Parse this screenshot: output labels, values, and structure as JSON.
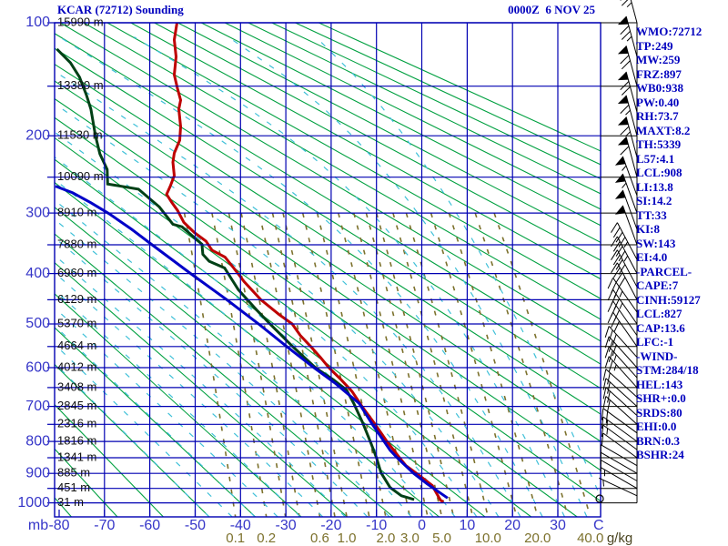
{
  "title": "KCAR (72712) Sounding",
  "datetime": "0000Z  6 NOV 25",
  "indices": [
    "WMO:72712",
    "TP:249",
    "MW:259",
    "FRZ:897",
    "WB0:938",
    "PW:0.40",
    "RH:73.7",
    "MAXT:8.2",
    "TH:5339",
    "L57:4.1",
    "LCL:908",
    "LI:13.8",
    "SI:14.2",
    "TT:33",
    "KI:8",
    "SW:143",
    "EI:4.0",
    "-PARCEL-",
    "CAPE:7",
    "CINH:59127",
    "LCL:827",
    "CAP:13.6",
    "LFC:-1",
    "-WIND-",
    "STM:284/18",
    "HEL:143",
    "SHR+:0.0",
    "SRDS:80",
    "EHI:0.0",
    "BRN:0.3",
    "BSHR:24"
  ],
  "axes": {
    "pressure_unit": "mb",
    "temperature_unit": "C",
    "mixing_unit": "g/kg",
    "pressure_labels": [
      100,
      200,
      300,
      400,
      500,
      600,
      700,
      800,
      900,
      1000
    ],
    "temperature_labels": [
      -80,
      -70,
      -60,
      -50,
      -40,
      -30,
      -20,
      -10,
      0,
      10,
      20,
      30
    ]
  },
  "colors": {
    "background": "#ffffff",
    "grid_blue": "#0000b2",
    "label_blue": "#3535c8",
    "text_blue": "#0000be",
    "adiabat_green": "#00a040",
    "mixing_olive": "#7c712c",
    "moist_cyan": "#3fc0d8",
    "temperature_red": "#be0000",
    "dewpoint_green": "#004016",
    "parcel_blue": "#0000c8",
    "barb_black": "#000000",
    "height_label": "#111111",
    "gkg_label": "#4a4420"
  },
  "chart_data": {
    "type": "line",
    "subtype": "stuve_sounding",
    "title": "KCAR (72712) Sounding",
    "xlabel": "Temperature (C)",
    "ylabel": "Pressure (mb)",
    "xlim": [
      -81,
      39.4
    ],
    "ylim": [
      1050,
      100
    ],
    "grid": true,
    "pressure_gridline_step_mb": 50,
    "isotherm_step_C": 10,
    "dry_adiabats_theta_C": {
      "min": -80,
      "max": 210,
      "step": 10
    },
    "moist_adiabats_thetaw_C": {
      "min": -50,
      "max": 40,
      "step": 5
    },
    "mixing_ratio_lines_gkg": [
      0.1,
      0.2,
      0.3,
      0.4,
      0.6,
      0.8,
      1,
      1.5,
      2,
      3,
      4,
      5,
      6,
      8,
      10,
      15,
      20,
      30,
      40
    ],
    "mixing_ratio_labeled_gkg": [
      "0.1",
      "0.2",
      "0.6",
      "1.0",
      "2.0",
      "3.0",
      "5.0",
      "10.0",
      "20.0",
      "40.0"
    ],
    "heights": [
      [
        100,
        "15990 m"
      ],
      [
        150,
        "13380 m"
      ],
      [
        200,
        "11530 m"
      ],
      [
        250,
        "10090 m"
      ],
      [
        300,
        "8910 m"
      ],
      [
        350,
        "7880 m"
      ],
      [
        400,
        "6960 m"
      ],
      [
        450,
        "6129 m"
      ],
      [
        500,
        "5370 m"
      ],
      [
        550,
        "4664 m"
      ],
      [
        600,
        "4012 m"
      ],
      [
        650,
        "3408 m"
      ],
      [
        700,
        "2845 m"
      ],
      [
        750,
        "2316 m"
      ],
      [
        800,
        "1816 m"
      ],
      [
        850,
        "1341 m"
      ],
      [
        900,
        "885 m"
      ],
      [
        950,
        "451 m"
      ],
      [
        1000,
        "31 m"
      ]
    ],
    "series": [
      {
        "name": "temperature",
        "color_key": "temperature_red",
        "points": [
          [
            100,
            -54
          ],
          [
            112,
            -54.6
          ],
          [
            125,
            -54.2
          ],
          [
            140,
            -54.6
          ],
          [
            152,
            -53.9
          ],
          [
            163,
            -53.2
          ],
          [
            172,
            -53.6
          ],
          [
            190,
            -53.2
          ],
          [
            205,
            -53.4
          ],
          [
            220,
            -54.6
          ],
          [
            231,
            -54.9
          ],
          [
            248,
            -54.6
          ],
          [
            262,
            -55.5
          ],
          [
            273,
            -56.3
          ],
          [
            284,
            -55.2
          ],
          [
            296,
            -53.9
          ],
          [
            314,
            -52.5
          ],
          [
            330,
            -50.2
          ],
          [
            344,
            -47.6
          ],
          [
            359,
            -46.3
          ],
          [
            371,
            -43.4
          ],
          [
            390,
            -41.5
          ],
          [
            415,
            -39.2
          ],
          [
            450,
            -35.5
          ],
          [
            480,
            -31.5
          ],
          [
            500,
            -28.6
          ],
          [
            525,
            -26.8
          ],
          [
            550,
            -24.5
          ],
          [
            575,
            -22.4
          ],
          [
            600,
            -20.5
          ],
          [
            630,
            -17.8
          ],
          [
            660,
            -15.4
          ],
          [
            700,
            -13.2
          ],
          [
            750,
            -10.3
          ],
          [
            800,
            -7.7
          ],
          [
            850,
            -4.9
          ],
          [
            875,
            -3.5
          ],
          [
            905,
            -0.7
          ],
          [
            940,
            2.3
          ],
          [
            965,
            3.2
          ],
          [
            985,
            3.9
          ],
          [
            992,
            4.2
          ],
          [
            996,
            4.8
          ]
        ]
      },
      {
        "name": "dewpoint",
        "color_key": "dewpoint_green",
        "points": [
          [
            119,
            -80.5
          ],
          [
            130,
            -77.5
          ],
          [
            142,
            -75.5
          ],
          [
            158,
            -74
          ],
          [
            172,
            -73
          ],
          [
            200,
            -72
          ],
          [
            221,
            -71
          ],
          [
            240,
            -69.4
          ],
          [
            259,
            -69.3
          ],
          [
            266,
            -62.5
          ],
          [
            291,
            -57.9
          ],
          [
            317,
            -54.9
          ],
          [
            321,
            -52.9
          ],
          [
            349,
            -48.5
          ],
          [
            366,
            -48.3
          ],
          [
            378,
            -46.9
          ],
          [
            390,
            -43.5
          ],
          [
            430,
            -40.5
          ],
          [
            470,
            -36.5
          ],
          [
            500,
            -33.5
          ],
          [
            550,
            -28.5
          ],
          [
            600,
            -23.5
          ],
          [
            630,
            -19.5
          ],
          [
            656,
            -16.6
          ],
          [
            692,
            -15
          ],
          [
            747,
            -13
          ],
          [
            806,
            -11.2
          ],
          [
            850,
            -10
          ],
          [
            898,
            -9
          ],
          [
            947,
            -7
          ],
          [
            975,
            -4.5
          ],
          [
            988,
            -1.7
          ]
        ]
      },
      {
        "name": "parcel",
        "color_key": "parcel_blue",
        "points": [
          [
            983,
            5.7
          ],
          [
            935,
            1.2
          ],
          [
            900,
            -1.8
          ],
          [
            852,
            -5.3
          ],
          [
            827,
            -7
          ],
          [
            750,
            -10.9
          ],
          [
            692,
            -13.8
          ],
          [
            640,
            -19
          ],
          [
            600,
            -23.8
          ],
          [
            550,
            -29.8
          ],
          [
            500,
            -36
          ],
          [
            450,
            -43
          ],
          [
            400,
            -51
          ],
          [
            350,
            -59.5
          ],
          [
            325,
            -64
          ],
          [
            301,
            -69
          ],
          [
            285,
            -73
          ],
          [
            271,
            -77
          ],
          [
            262,
            -80.8
          ]
        ]
      }
    ],
    "winds": {
      "units": "kt",
      "format": "[pressure_mb, direction_deg, speed_kt]",
      "barbs": [
        [
          100,
          345,
          75
        ],
        [
          125,
          345,
          75
        ],
        [
          150,
          345,
          70
        ],
        [
          175,
          345,
          70
        ],
        [
          200,
          345,
          65
        ],
        [
          225,
          345,
          65
        ],
        [
          250,
          345,
          60
        ],
        [
          275,
          340,
          55
        ],
        [
          300,
          340,
          55
        ],
        [
          325,
          340,
          50
        ],
        [
          350,
          340,
          50
        ],
        [
          375,
          332,
          45
        ],
        [
          400,
          332,
          45
        ],
        [
          425,
          332,
          40
        ],
        [
          450,
          332,
          40
        ],
        [
          475,
          325,
          35
        ],
        [
          500,
          325,
          35
        ],
        [
          525,
          325,
          32
        ],
        [
          550,
          325,
          30
        ],
        [
          575,
          318,
          30
        ],
        [
          600,
          318,
          28
        ],
        [
          625,
          318,
          25
        ],
        [
          650,
          318,
          25
        ],
        [
          675,
          312,
          22
        ],
        [
          700,
          312,
          20
        ],
        [
          725,
          312,
          20
        ],
        [
          750,
          312,
          18
        ],
        [
          775,
          306,
          18
        ],
        [
          800,
          306,
          15
        ],
        [
          825,
          306,
          15
        ],
        [
          850,
          306,
          12
        ],
        [
          875,
          300,
          10
        ],
        [
          900,
          300,
          10
        ],
        [
          925,
          300,
          8
        ],
        [
          950,
          300,
          5
        ],
        [
          975,
          295,
          5
        ],
        [
          1000,
          0,
          0
        ]
      ]
    }
  }
}
